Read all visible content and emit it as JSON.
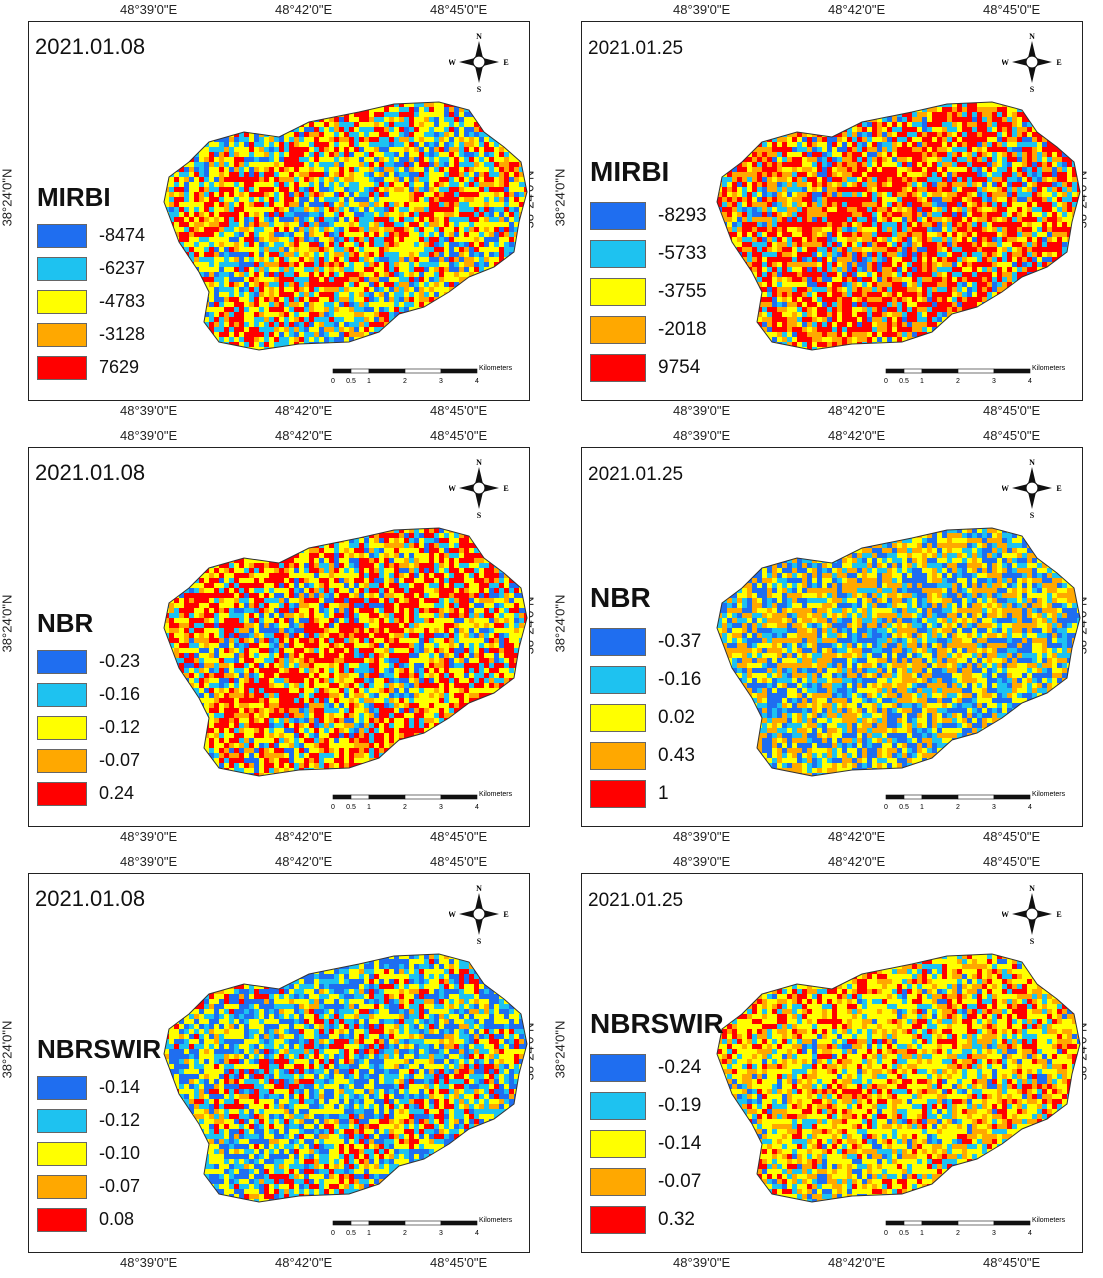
{
  "coords": {
    "lon": [
      "48°39'0\"E",
      "48°42'0\"E",
      "48°45'0\"E"
    ],
    "lat": "38°24'0\"N"
  },
  "compass": {
    "n": "N",
    "s": "S",
    "e": "E",
    "w": "W"
  },
  "scale": {
    "ticks": [
      "0",
      "0.5",
      "1",
      "2",
      "3",
      "4"
    ],
    "unit": "Kilometers"
  },
  "colors": {
    "c1": "#1f6ef0",
    "c2": "#1ec2f0",
    "c3": "#ffff00",
    "c4": "#ffa800",
    "c5": "#ff0000"
  },
  "panels": [
    {
      "date": "2021.01.08",
      "index": "MIRBI",
      "legend": [
        "-8474",
        "-6237",
        "-4783",
        "-3128",
        "7629"
      ],
      "mix": [
        0.1,
        0.22,
        0.33,
        0.14,
        0.21
      ]
    },
    {
      "date": "2021.01.25",
      "index": "MIRBI",
      "legend": [
        "-8293",
        "-5733",
        "-3755",
        "-2018",
        "9754"
      ],
      "mix": [
        0.08,
        0.15,
        0.17,
        0.22,
        0.38
      ]
    },
    {
      "date": "2021.01.08",
      "index": "NBR",
      "legend": [
        "-0.23",
        "-0.16",
        "-0.12",
        "-0.07",
        "0.24"
      ],
      "mix": [
        0.08,
        0.14,
        0.3,
        0.13,
        0.35
      ]
    },
    {
      "date": "2021.01.25",
      "index": "NBR",
      "legend": [
        "-0.37",
        "-0.16",
        "0.02",
        "0.43",
        "1"
      ],
      "mix": [
        0.28,
        0.18,
        0.24,
        0.3,
        0.0
      ]
    },
    {
      "date": "2021.01.08",
      "index": "NBRSWIR",
      "legend": [
        "-0.14",
        "-0.12",
        "-0.10",
        "-0.07",
        "0.08"
      ],
      "mix": [
        0.24,
        0.24,
        0.32,
        0.08,
        0.12
      ]
    },
    {
      "date": "2021.01.25",
      "index": "NBRSWIR",
      "legend": [
        "-0.24",
        "-0.19",
        "-0.14",
        "-0.07",
        "0.32"
      ],
      "mix": [
        0.06,
        0.16,
        0.38,
        0.25,
        0.15
      ]
    }
  ]
}
